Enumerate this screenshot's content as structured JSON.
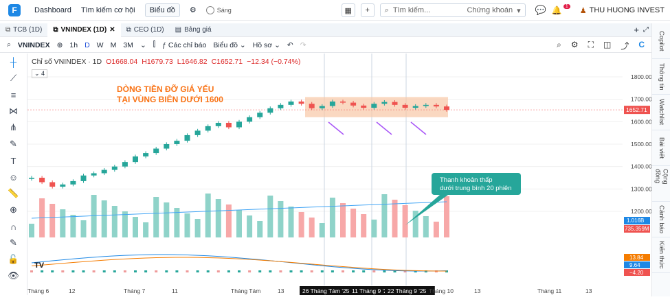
{
  "topbar": {
    "nav": [
      "Dashboard",
      "Tìm kiếm cơ hội",
      "Biểu đồ"
    ],
    "toggle": "Sáng",
    "search_placeholder": "Tìm kiếm...",
    "search_category": "Chứng khoán",
    "notif_count": "1",
    "user": "THU HUONG INVEST"
  },
  "tabs": [
    "TCB (1D)",
    "VNINDEX (1D)",
    "CEO (1D)",
    "Bảng giá"
  ],
  "toolbar": {
    "symbol": "VNINDEX",
    "intervals": [
      "1h",
      "D",
      "W",
      "M",
      "3M"
    ],
    "indicators": "Các chỉ báo",
    "chart": "Biểu đồ",
    "profile": "Hồ sơ"
  },
  "legend": {
    "title": "Chỉ số VNINDEX · 1D",
    "o": "O1668.04",
    "h": "H1679.73",
    "l": "L1646.82",
    "c": "C1652.71",
    "chg": "−12.34 (−0.74%)",
    "count": "4"
  },
  "annotations": {
    "title1": "DÒNG TIỀN ĐỠ GIÁ YẾU",
    "title2": "TẠI VÙNG BIÊN DƯỚI 1600",
    "callout1": "Thanh khoản thấp",
    "callout2": "dưới trung bình 20 phiên"
  },
  "price_axis": [
    "1800.00",
    "1700.00",
    "1600.00",
    "1500.00",
    "1400.00",
    "1300.00",
    "1200.00"
  ],
  "price_label": "1652.71",
  "vol_labels": [
    "1.016B",
    "735.359M"
  ],
  "macd_labels": [
    "13.84",
    "9.64",
    "−4.20"
  ],
  "x_axis": [
    "Tháng 6",
    "12",
    "Tháng 7",
    "11",
    "Tháng Tám",
    "13",
    "26 Tháng Tám '25",
    "11 Tháng 9 '2",
    "22 Tháng 9 '25",
    "Tháng 10",
    "13",
    "Tháng 11",
    "13"
  ],
  "right_sidebar": [
    "Copilot",
    "Thông tin",
    "Watchlist",
    "Bài viết",
    "Cộng đồng",
    "Cảnh báo",
    "Kiến thức"
  ],
  "colors": {
    "up": "#26a69a",
    "down": "#ef5350",
    "accent": "#1e88e5",
    "zone": "#f8c7a6"
  },
  "chart_data": {
    "type": "candlestick",
    "series": [
      {
        "name": "VNINDEX",
        "ohlc_close": [
          1350,
          1330,
          1310,
          1320,
          1335,
          1360,
          1370,
          1385,
          1400,
          1420,
          1445,
          1460,
          1480,
          1500,
          1515,
          1540,
          1560,
          1580,
          1595,
          1575,
          1600,
          1620,
          1640,
          1660,
          1675,
          1690,
          1680,
          1660,
          1670,
          1690,
          1685,
          1672,
          1662,
          1680,
          1688,
          1675,
          1662,
          1670,
          1675,
          1668,
          1652.71
        ]
      }
    ]
  }
}
